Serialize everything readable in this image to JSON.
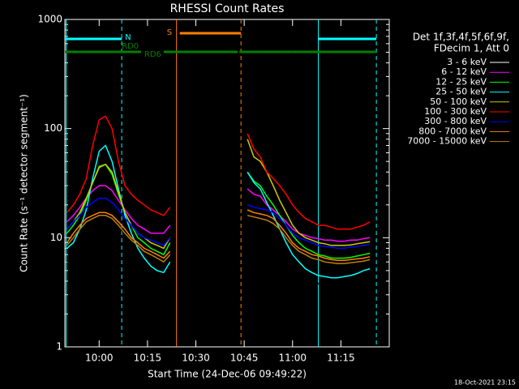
{
  "chart_data": {
    "type": "line",
    "title": "RHESSI Count Rates",
    "xlabel": "Start Time (24-Dec-06 09:49:22)",
    "ylabel": "Count Rate (s⁻¹ detector segment⁻¹)",
    "legend_header": [
      "Det 1f,3f,4f,5f,6f,9f,",
      "FDecim 1, Att 0"
    ],
    "footer": "18-Oct-2021 23:15",
    "log_y": true,
    "xlim": [
      "09:49:22",
      "11:30"
    ],
    "xticks": [
      "10:00",
      "10:15",
      "10:30",
      "10:45",
      "11:00",
      "11:15"
    ],
    "ylim": [
      1,
      1000
    ],
    "yticks": [
      1,
      10,
      100,
      1000
    ],
    "x": [
      "09:50",
      "09:52",
      "09:54",
      "09:56",
      "09:58",
      "10:00",
      "10:02",
      "10:04",
      "10:06",
      "10:08",
      "10:10",
      "10:12",
      "10:14",
      "10:16",
      "10:18",
      "10:20",
      "10:22",
      "10:34",
      "10:46",
      "10:48",
      "10:50",
      "10:52",
      "10:54",
      "10:56",
      "10:58",
      "11:00",
      "11:02",
      "11:04",
      "11:06",
      "11:08",
      "11:10",
      "11:12",
      "11:14",
      "11:16",
      "11:18",
      "11:20",
      "11:22",
      "11:24"
    ],
    "series": [
      {
        "name": "3 - 6 keV",
        "color": "#000000",
        "values": [
          6,
          7,
          8,
          10,
          13,
          16,
          18,
          17,
          14,
          10,
          8,
          6,
          5,
          4.5,
          4,
          3.8,
          4.5,
          null,
          15,
          14,
          13,
          12,
          10,
          8,
          6.5,
          5.5,
          4.8,
          4.2,
          4,
          3.8,
          3.7,
          3.6,
          3.6,
          3.7,
          3.8,
          4,
          4.2,
          4.5
        ]
      },
      {
        "name": "6 - 12 keV",
        "color": "#ff00ff",
        "values": [
          14,
          16,
          19,
          23,
          27,
          30,
          30,
          27,
          22,
          18,
          15,
          13,
          12,
          11,
          11,
          11,
          13,
          null,
          28,
          25,
          24,
          20,
          18,
          16,
          14,
          12,
          11,
          10.5,
          10,
          9.8,
          9.5,
          9.5,
          9.3,
          9.3,
          9.5,
          9.5,
          9.8,
          10
        ]
      },
      {
        "name": "12 - 25 keV",
        "color": "#00ff00",
        "values": [
          11,
          13,
          16,
          22,
          32,
          45,
          47,
          38,
          25,
          17,
          13,
          10,
          9,
          8,
          7.5,
          7,
          9,
          null,
          40,
          33,
          30,
          24,
          20,
          16,
          13,
          10.5,
          9,
          8,
          7.5,
          7,
          6.8,
          6.5,
          6.5,
          6.5,
          6.6,
          6.8,
          7,
          7.2
        ]
      },
      {
        "name": "25 - 50 keV",
        "color": "#00ffff",
        "values": [
          8,
          9,
          12,
          18,
          35,
          62,
          70,
          50,
          28,
          16,
          11,
          8,
          6.5,
          5.5,
          5,
          4.8,
          6,
          null,
          40,
          32,
          28,
          21,
          16,
          12,
          9,
          7,
          6,
          5.2,
          4.8,
          4.5,
          4.4,
          4.3,
          4.3,
          4.4,
          4.5,
          4.7,
          5,
          5.2
        ]
      },
      {
        "name": "50 - 100 keV",
        "color": "#cccc00",
        "values": [
          12,
          14,
          17,
          23,
          32,
          44,
          47,
          40,
          26,
          17,
          13,
          11,
          10,
          9,
          8.5,
          8,
          10,
          null,
          80,
          55,
          50,
          40,
          30,
          22,
          17,
          13,
          11,
          10,
          9.5,
          9,
          8.8,
          8.5,
          8.5,
          8.5,
          8.6,
          8.8,
          9,
          9.2
        ]
      },
      {
        "name": "100 - 300 keV",
        "color": "#ff0000",
        "values": [
          17,
          20,
          25,
          35,
          70,
          120,
          130,
          100,
          50,
          30,
          25,
          22,
          20,
          18,
          17,
          16,
          19,
          null,
          90,
          65,
          55,
          40,
          35,
          30,
          25,
          20,
          17,
          15,
          14,
          13,
          13,
          12.5,
          12,
          12,
          12,
          12.5,
          13,
          14
        ]
      },
      {
        "name": "300 - 800 keV",
        "color": "#0000ff",
        "values": [
          12,
          14,
          16,
          19,
          21,
          23,
          23,
          21,
          18,
          15,
          13,
          11,
          10,
          9.5,
          9,
          8.5,
          10,
          null,
          20,
          19,
          18.5,
          18,
          17,
          15,
          13,
          11,
          10,
          9.5,
          9,
          8.5,
          8.3,
          8.2,
          8,
          8,
          8.2,
          8.3,
          8.5,
          8.7
        ]
      },
      {
        "name": "800 - 7000 keV",
        "color": "#ff8000",
        "values": [
          9,
          11,
          13,
          15,
          16,
          17,
          17,
          16,
          14,
          12,
          10,
          9,
          8,
          7.5,
          7,
          6.5,
          7.5,
          null,
          18,
          17,
          16.5,
          16,
          15,
          13,
          11,
          9,
          8,
          7.5,
          7,
          6.8,
          6.5,
          6.3,
          6.2,
          6.2,
          6.3,
          6.4,
          6.5,
          6.7
        ]
      },
      {
        "name": "7000 - 15000 keV",
        "color": "#c08000",
        "values": [
          8.5,
          10,
          12,
          14,
          15,
          16,
          16,
          15,
          13,
          11,
          9.5,
          8.5,
          7.5,
          7,
          6.5,
          6,
          7,
          null,
          16,
          15.5,
          15,
          14.5,
          13.5,
          12,
          10,
          8.5,
          7.5,
          7,
          6.5,
          6.3,
          6,
          5.9,
          5.8,
          5.8,
          5.9,
          6,
          6.1,
          6.3
        ]
      }
    ],
    "flag_bars": [
      {
        "start": "09:49:22",
        "end": "10:07",
        "color": "#00ffff"
      },
      {
        "start": "11:08",
        "end": "11:26",
        "color": "#00ffff"
      },
      {
        "start": "09:49:22",
        "end": "10:13",
        "color": "#008000"
      },
      {
        "start": "10:20",
        "end": "10:43",
        "color": "#008000"
      },
      {
        "start": "10:43:30",
        "end": "11:00",
        "color": "#008000"
      },
      {
        "start": "11:00",
        "end": "11:26",
        "color": "#008000"
      },
      {
        "start": "10:25",
        "end": "10:44",
        "color": "#ff8000"
      }
    ],
    "flag_labels": [
      {
        "text": "N",
        "time": "10:08",
        "color": "#00ffff"
      },
      {
        "text": "RD0",
        "time": "10:07",
        "color": "#008000"
      },
      {
        "text": "RD6",
        "time": "10:14",
        "color": "#008000"
      },
      {
        "text": "S",
        "time": "10:21",
        "color": "#ff8000"
      }
    ],
    "markers": [
      {
        "time": "09:49:45",
        "color": "#00ffff",
        "dashed": false
      },
      {
        "time": "10:07",
        "color": "#00ffff",
        "dashed": true
      },
      {
        "time": "10:24",
        "color": "#ff8000",
        "dashed": false
      },
      {
        "time": "10:44",
        "color": "#ff8000",
        "dashed": true
      },
      {
        "time": "11:08",
        "color": "#00ffff",
        "dashed": false
      },
      {
        "time": "11:26",
        "color": "#00ffff",
        "dashed": true
      }
    ]
  }
}
